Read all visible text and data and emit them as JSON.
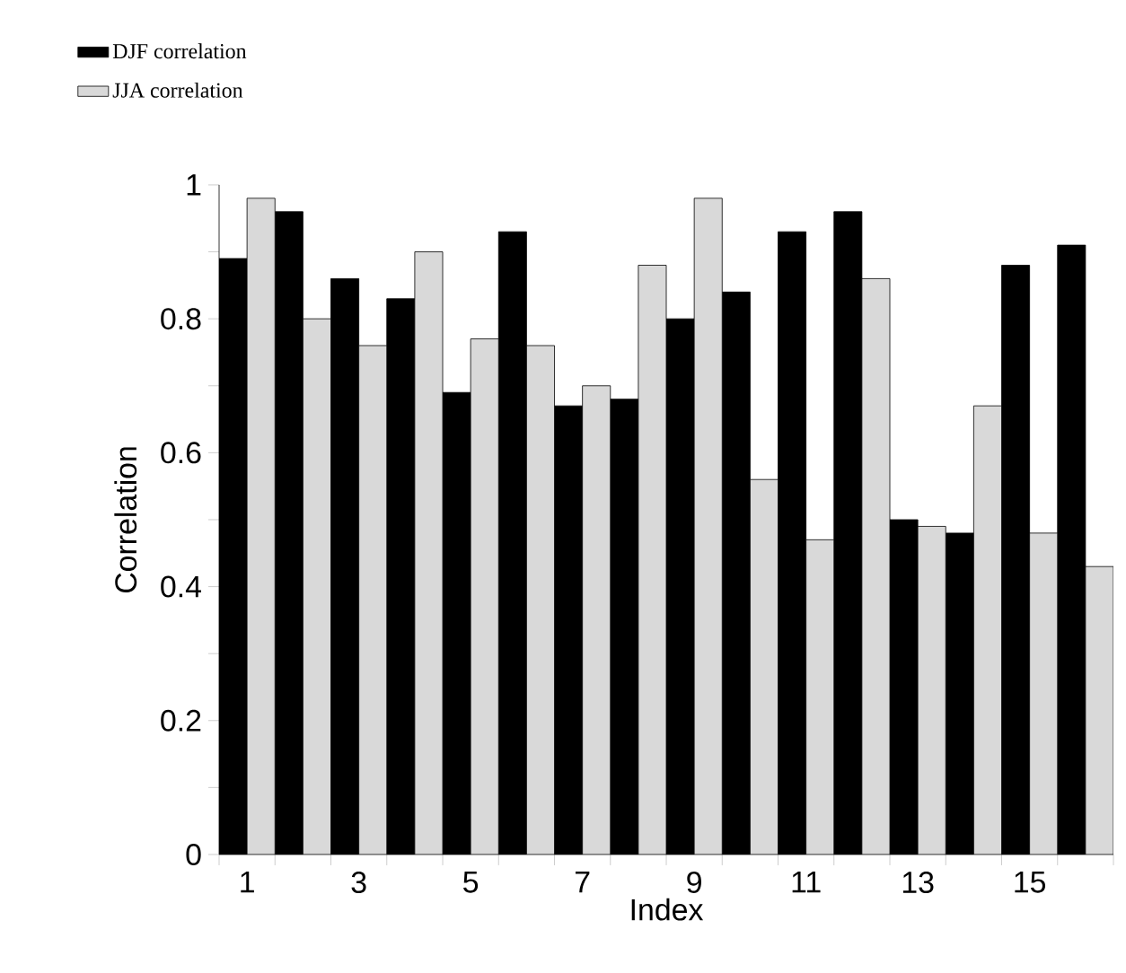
{
  "chart_data": {
    "type": "bar",
    "xlabel": "Index",
    "ylabel": "Correlation",
    "categories": [
      "1",
      null,
      "3",
      null,
      "5",
      null,
      "7",
      null,
      "9",
      null,
      "11",
      null,
      "13",
      null,
      "15",
      null
    ],
    "series": [
      {
        "name": "DJF correlation",
        "color": "#000000",
        "values": [
          0.89,
          0.96,
          0.86,
          0.83,
          0.69,
          0.93,
          0.67,
          0.68,
          0.8,
          0.84,
          0.93,
          0.96,
          0.5,
          0.48,
          0.88,
          0.91
        ]
      },
      {
        "name": "JJA correlation",
        "color": "#d9d9d9",
        "values": [
          0.98,
          0.8,
          0.76,
          0.9,
          0.77,
          0.76,
          0.7,
          0.88,
          0.98,
          0.56,
          0.47,
          0.86,
          0.49,
          0.67,
          0.48,
          0.43
        ]
      }
    ],
    "ylim": [
      0,
      1
    ],
    "yticks": [
      0,
      0.2,
      0.4,
      0.6,
      0.8,
      1
    ],
    "legend": "top left",
    "grid": false
  }
}
